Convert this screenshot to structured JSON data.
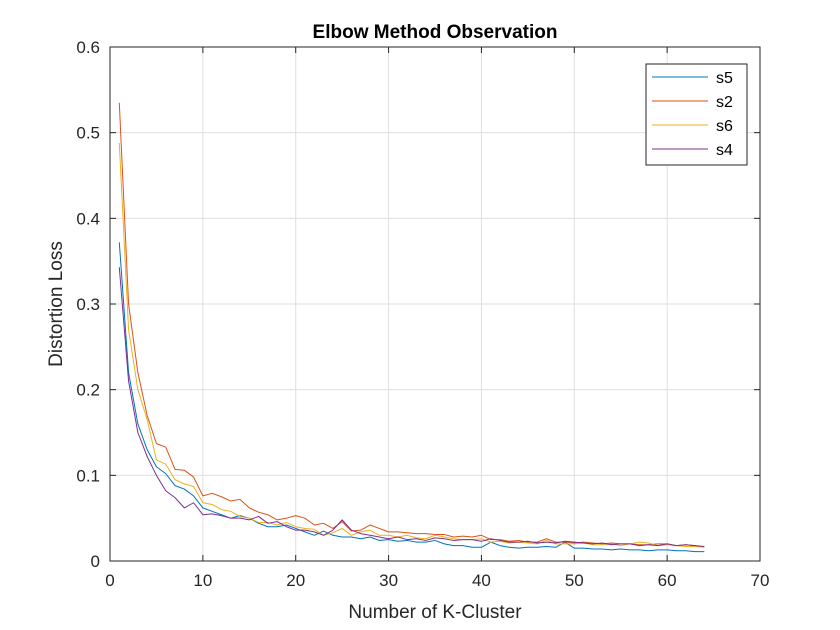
{
  "chart_data": {
    "type": "line",
    "title": "Elbow Method Observation",
    "xlabel": "Number of K-Cluster",
    "ylabel": "Distortion Loss",
    "xlim": [
      0,
      70
    ],
    "ylim": [
      0,
      0.6
    ],
    "xticks": [
      0,
      10,
      20,
      30,
      40,
      50,
      60,
      70
    ],
    "yticks": [
      0,
      0.1,
      0.2,
      0.3,
      0.4,
      0.5,
      0.6
    ],
    "ytick_labels": [
      "0",
      "0.1",
      "0.2",
      "0.3",
      "0.4",
      "0.5",
      "0.6"
    ],
    "grid": true,
    "legend_position": "top-right",
    "series": [
      {
        "name": "s5",
        "color": "#0072BD",
        "x": [
          1,
          2,
          3,
          4,
          5,
          6,
          7,
          8,
          9,
          10,
          11,
          12,
          13,
          14,
          15,
          16,
          17,
          18,
          19,
          20,
          21,
          22,
          23,
          24,
          25,
          26,
          27,
          28,
          29,
          30,
          31,
          32,
          33,
          34,
          35,
          36,
          37,
          38,
          39,
          40,
          41,
          42,
          43,
          44,
          45,
          46,
          47,
          48,
          49,
          50,
          51,
          52,
          53,
          54,
          55,
          56,
          57,
          58,
          59,
          60,
          61,
          62,
          63,
          64
        ],
        "values": [
          0.372,
          0.22,
          0.16,
          0.13,
          0.11,
          0.102,
          0.088,
          0.084,
          0.076,
          0.062,
          0.058,
          0.054,
          0.05,
          0.053,
          0.05,
          0.044,
          0.04,
          0.04,
          0.042,
          0.038,
          0.034,
          0.03,
          0.035,
          0.03,
          0.028,
          0.028,
          0.026,
          0.028,
          0.024,
          0.025,
          0.023,
          0.024,
          0.022,
          0.022,
          0.024,
          0.02,
          0.018,
          0.018,
          0.016,
          0.016,
          0.022,
          0.018,
          0.016,
          0.015,
          0.016,
          0.016,
          0.017,
          0.016,
          0.022,
          0.015,
          0.015,
          0.014,
          0.014,
          0.013,
          0.014,
          0.013,
          0.013,
          0.012,
          0.013,
          0.013,
          0.012,
          0.012,
          0.011,
          0.011
        ]
      },
      {
        "name": "s2",
        "color": "#D95319",
        "x": [
          1,
          2,
          3,
          4,
          5,
          6,
          7,
          8,
          9,
          10,
          11,
          12,
          13,
          14,
          15,
          16,
          17,
          18,
          19,
          20,
          21,
          22,
          23,
          24,
          25,
          26,
          27,
          28,
          29,
          30,
          31,
          32,
          33,
          34,
          35,
          36,
          37,
          38,
          39,
          40,
          41,
          42,
          43,
          44,
          45,
          46,
          47,
          48,
          49,
          50,
          51,
          52,
          53,
          54,
          55,
          56,
          57,
          58,
          59,
          60,
          61,
          62,
          63,
          64
        ],
        "values": [
          0.535,
          0.3,
          0.22,
          0.17,
          0.137,
          0.133,
          0.107,
          0.106,
          0.098,
          0.076,
          0.079,
          0.075,
          0.07,
          0.072,
          0.062,
          0.057,
          0.054,
          0.048,
          0.05,
          0.053,
          0.05,
          0.042,
          0.044,
          0.038,
          0.046,
          0.035,
          0.036,
          0.042,
          0.038,
          0.034,
          0.034,
          0.033,
          0.032,
          0.032,
          0.031,
          0.031,
          0.028,
          0.029,
          0.028,
          0.03,
          0.025,
          0.025,
          0.023,
          0.024,
          0.022,
          0.022,
          0.026,
          0.022,
          0.022,
          0.021,
          0.022,
          0.021,
          0.02,
          0.021,
          0.02,
          0.02,
          0.019,
          0.019,
          0.02,
          0.02,
          0.018,
          0.019,
          0.018,
          0.016
        ]
      },
      {
        "name": "s6",
        "color": "#EDB120",
        "x": [
          1,
          2,
          3,
          4,
          5,
          6,
          7,
          8,
          9,
          10,
          11,
          12,
          13,
          14,
          15,
          16,
          17,
          18,
          19,
          20,
          21,
          22,
          23,
          24,
          25,
          26,
          27,
          28,
          29,
          30,
          31,
          32,
          33,
          34,
          35,
          36,
          37,
          38,
          39,
          40,
          41,
          42,
          43,
          44,
          45,
          46,
          47,
          48,
          49,
          50,
          51,
          52,
          53,
          54,
          55,
          56,
          57,
          58,
          59,
          60,
          61,
          62,
          63,
          64
        ],
        "values": [
          0.488,
          0.27,
          0.2,
          0.165,
          0.118,
          0.113,
          0.095,
          0.09,
          0.087,
          0.068,
          0.066,
          0.06,
          0.058,
          0.052,
          0.05,
          0.045,
          0.045,
          0.042,
          0.045,
          0.04,
          0.038,
          0.037,
          0.03,
          0.033,
          0.038,
          0.03,
          0.034,
          0.036,
          0.03,
          0.03,
          0.028,
          0.03,
          0.027,
          0.026,
          0.03,
          0.028,
          0.026,
          0.025,
          0.025,
          0.026,
          0.022,
          0.023,
          0.021,
          0.022,
          0.021,
          0.02,
          0.024,
          0.02,
          0.02,
          0.02,
          0.021,
          0.019,
          0.019,
          0.02,
          0.018,
          0.02,
          0.022,
          0.021,
          0.018,
          0.019,
          0.018,
          0.017,
          0.017,
          0.016
        ]
      },
      {
        "name": "s4",
        "color": "#7E2F8E",
        "x": [
          1,
          2,
          3,
          4,
          5,
          6,
          7,
          8,
          9,
          10,
          11,
          12,
          13,
          14,
          15,
          16,
          17,
          18,
          19,
          20,
          21,
          22,
          23,
          24,
          25,
          26,
          27,
          28,
          29,
          30,
          31,
          32,
          33,
          34,
          35,
          36,
          37,
          38,
          39,
          40,
          41,
          42,
          43,
          44,
          45,
          46,
          47,
          48,
          49,
          50,
          51,
          52,
          53,
          54,
          55,
          56,
          57,
          58,
          59,
          60,
          61,
          62,
          63,
          64
        ],
        "values": [
          0.343,
          0.21,
          0.15,
          0.122,
          0.1,
          0.082,
          0.074,
          0.062,
          0.068,
          0.054,
          0.055,
          0.053,
          0.05,
          0.05,
          0.048,
          0.052,
          0.044,
          0.046,
          0.04,
          0.036,
          0.036,
          0.034,
          0.03,
          0.036,
          0.048,
          0.036,
          0.032,
          0.03,
          0.028,
          0.026,
          0.028,
          0.025,
          0.026,
          0.024,
          0.027,
          0.026,
          0.024,
          0.025,
          0.025,
          0.023,
          0.026,
          0.024,
          0.022,
          0.022,
          0.023,
          0.021,
          0.022,
          0.021,
          0.023,
          0.022,
          0.021,
          0.02,
          0.021,
          0.019,
          0.02,
          0.02,
          0.018,
          0.019,
          0.018,
          0.02,
          0.018,
          0.019,
          0.018,
          0.017
        ]
      }
    ]
  }
}
